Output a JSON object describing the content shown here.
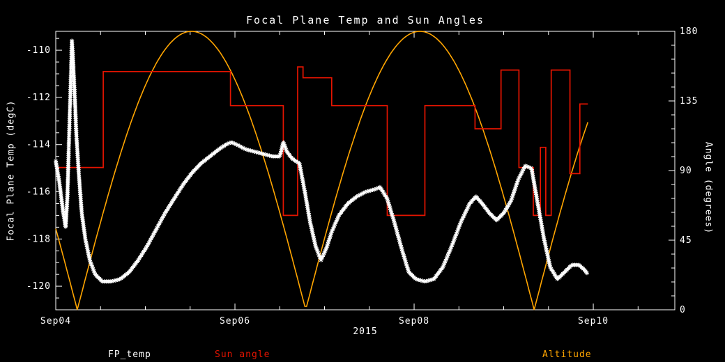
{
  "chart_data": {
    "type": "line",
    "title": "Focal Plane Temp and Sun Angles",
    "background_color": "#000000",
    "frame_color": "#ffffff",
    "x_axis": {
      "label": "2015",
      "range_days": [
        4.0,
        10.91
      ],
      "major_ticks": [
        {
          "t": 4,
          "label": "Sep04"
        },
        {
          "t": 6,
          "label": "Sep06"
        },
        {
          "t": 8,
          "label": "Sep08"
        },
        {
          "t": 10,
          "label": "Sep10"
        }
      ],
      "minor_step": 0.5
    },
    "y_left": {
      "label": "Focal Plane Temp (degC)",
      "range": [
        -121.0,
        -109.2
      ],
      "ticks": [
        -110,
        -112,
        -114,
        -116,
        -118,
        -120
      ],
      "minor_step": 0.5
    },
    "y_right": {
      "label": "Angle (degrees)",
      "range": [
        0,
        180
      ],
      "ticks": [
        0,
        45,
        90,
        135,
        180
      ],
      "minor_step": 9
    },
    "series": [
      {
        "name": "FP_temp",
        "axis": "left",
        "color": "#ffffff",
        "style": "asterisk-markers",
        "points": [
          [
            4.0,
            -114.7
          ],
          [
            4.04,
            -115.6
          ],
          [
            4.08,
            -116.8
          ],
          [
            4.11,
            -117.5
          ],
          [
            4.13,
            -116.2
          ],
          [
            4.15,
            -113.5
          ],
          [
            4.17,
            -111.0
          ],
          [
            4.18,
            -109.6
          ],
          [
            4.19,
            -110.2
          ],
          [
            4.21,
            -111.8
          ],
          [
            4.23,
            -113.6
          ],
          [
            4.26,
            -115.4
          ],
          [
            4.29,
            -116.9
          ],
          [
            4.33,
            -118.0
          ],
          [
            4.38,
            -118.9
          ],
          [
            4.44,
            -119.5
          ],
          [
            4.52,
            -119.8
          ],
          [
            4.62,
            -119.8
          ],
          [
            4.72,
            -119.7
          ],
          [
            4.82,
            -119.4
          ],
          [
            4.92,
            -118.9
          ],
          [
            5.02,
            -118.3
          ],
          [
            5.12,
            -117.6
          ],
          [
            5.22,
            -116.9
          ],
          [
            5.32,
            -116.3
          ],
          [
            5.42,
            -115.7
          ],
          [
            5.52,
            -115.2
          ],
          [
            5.62,
            -114.8
          ],
          [
            5.72,
            -114.5
          ],
          [
            5.82,
            -114.2
          ],
          [
            5.9,
            -114.0
          ],
          [
            5.96,
            -113.9
          ],
          [
            6.02,
            -114.0
          ],
          [
            6.12,
            -114.2
          ],
          [
            6.22,
            -114.3
          ],
          [
            6.32,
            -114.4
          ],
          [
            6.42,
            -114.5
          ],
          [
            6.5,
            -114.5
          ],
          [
            6.54,
            -113.9
          ],
          [
            6.58,
            -114.3
          ],
          [
            6.64,
            -114.6
          ],
          [
            6.72,
            -114.8
          ],
          [
            6.78,
            -116.0
          ],
          [
            6.84,
            -117.3
          ],
          [
            6.9,
            -118.3
          ],
          [
            6.96,
            -118.9
          ],
          [
            7.02,
            -118.4
          ],
          [
            7.08,
            -117.7
          ],
          [
            7.16,
            -117.0
          ],
          [
            7.26,
            -116.5
          ],
          [
            7.36,
            -116.2
          ],
          [
            7.46,
            -116.0
          ],
          [
            7.56,
            -115.9
          ],
          [
            7.62,
            -115.8
          ],
          [
            7.7,
            -116.3
          ],
          [
            7.78,
            -117.3
          ],
          [
            7.86,
            -118.4
          ],
          [
            7.94,
            -119.4
          ],
          [
            8.02,
            -119.7
          ],
          [
            8.12,
            -119.8
          ],
          [
            8.22,
            -119.7
          ],
          [
            8.32,
            -119.2
          ],
          [
            8.42,
            -118.3
          ],
          [
            8.52,
            -117.3
          ],
          [
            8.62,
            -116.5
          ],
          [
            8.69,
            -116.2
          ],
          [
            8.76,
            -116.5
          ],
          [
            8.84,
            -116.9
          ],
          [
            8.92,
            -117.2
          ],
          [
            9.0,
            -116.9
          ],
          [
            9.08,
            -116.4
          ],
          [
            9.16,
            -115.5
          ],
          [
            9.24,
            -114.9
          ],
          [
            9.31,
            -115.0
          ],
          [
            9.38,
            -116.5
          ],
          [
            9.45,
            -118.0
          ],
          [
            9.52,
            -119.2
          ],
          [
            9.6,
            -119.7
          ],
          [
            9.68,
            -119.4
          ],
          [
            9.76,
            -119.1
          ],
          [
            9.84,
            -119.1
          ],
          [
            9.9,
            -119.3
          ],
          [
            9.94,
            -119.5
          ]
        ]
      },
      {
        "name": "Sun angle",
        "axis": "right",
        "color": "#e51400",
        "style": "step-line",
        "points": [
          [
            4.0,
            92
          ],
          [
            4.53,
            92
          ],
          [
            4.53,
            154
          ],
          [
            5.95,
            154
          ],
          [
            5.95,
            132
          ],
          [
            6.54,
            132
          ],
          [
            6.54,
            61
          ],
          [
            6.7,
            61
          ],
          [
            6.7,
            157
          ],
          [
            6.76,
            157
          ],
          [
            6.76,
            150
          ],
          [
            7.08,
            150
          ],
          [
            7.08,
            132
          ],
          [
            7.7,
            132
          ],
          [
            7.7,
            61
          ],
          [
            8.12,
            61
          ],
          [
            8.12,
            132
          ],
          [
            8.68,
            132
          ],
          [
            8.68,
            117
          ],
          [
            8.97,
            117
          ],
          [
            8.97,
            155
          ],
          [
            9.17,
            155
          ],
          [
            9.17,
            92
          ],
          [
            9.33,
            92
          ],
          [
            9.33,
            61
          ],
          [
            9.41,
            61
          ],
          [
            9.41,
            105
          ],
          [
            9.47,
            105
          ],
          [
            9.47,
            61
          ],
          [
            9.53,
            61
          ],
          [
            9.53,
            155
          ],
          [
            9.74,
            155
          ],
          [
            9.74,
            88
          ],
          [
            9.85,
            88
          ],
          [
            9.85,
            133
          ],
          [
            9.94,
            133
          ]
        ]
      },
      {
        "name": "Altitude",
        "axis": "right",
        "color": "#ffa500",
        "style": "abs-sine-arches",
        "model": {
          "zero": 4.24,
          "period": 2.55,
          "amplitude": 180,
          "t_start": 4.0,
          "t_end": 9.94
        }
      }
    ],
    "legend": [
      {
        "label": "FP_temp",
        "color": "#ffffff"
      },
      {
        "label": "Sun angle",
        "color": "#e51400"
      },
      {
        "label": "Altitude",
        "color": "#ffa500"
      }
    ]
  }
}
